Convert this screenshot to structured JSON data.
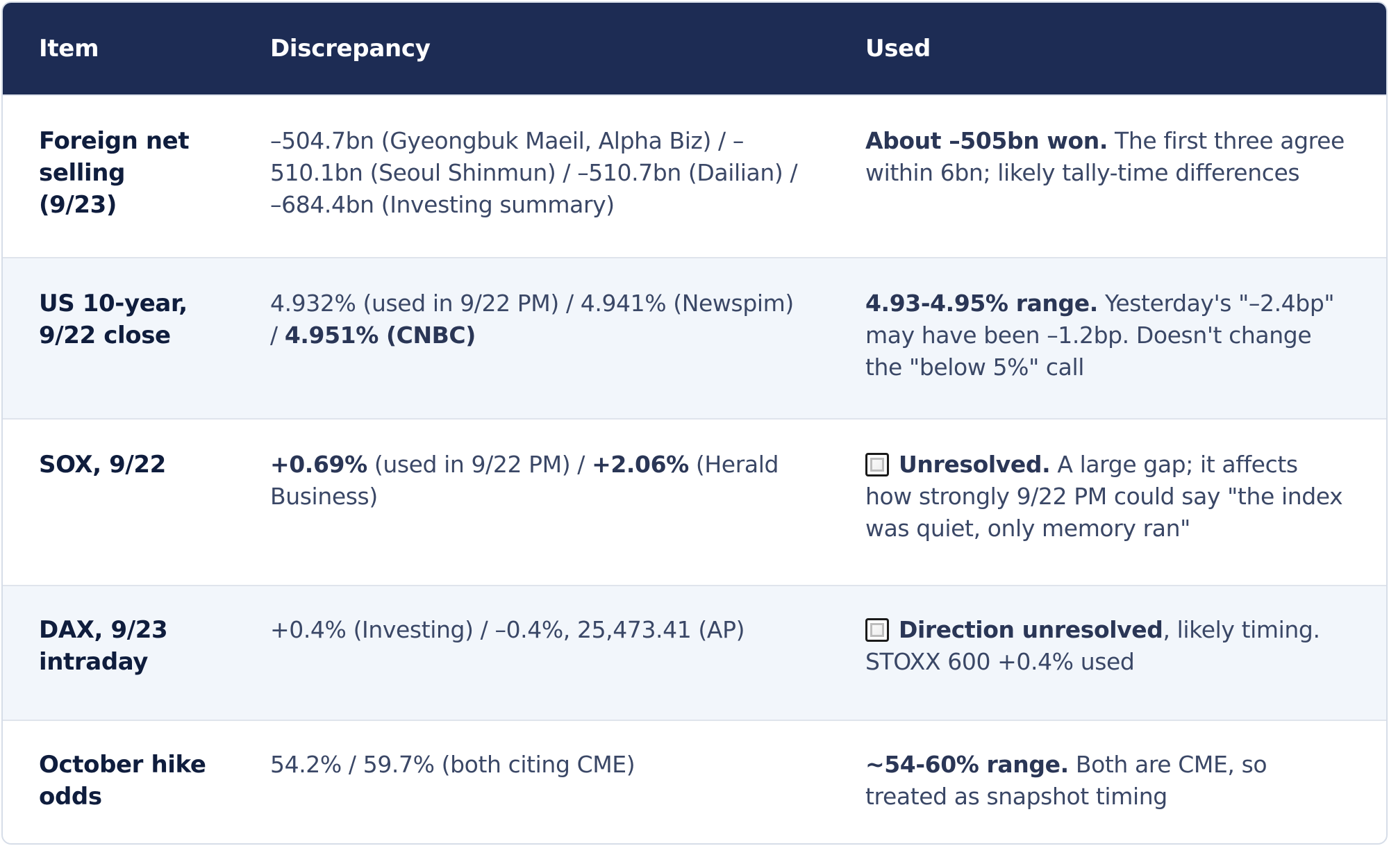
{
  "headers": {
    "item": "Item",
    "discrepancy": "Discrepancy",
    "used": "Used"
  },
  "rows": [
    {
      "item": "Foreign net selling (9/23)",
      "discrepancy": "–504.7bn (Gyeongbuk Maeil, Alpha Biz) / –510.1bn (Seoul Shinmun) / –510.7bn (Dailian) / –684.4bn (Investing summary)",
      "used_bold": "About –505bn won.",
      "used_rest": " The first three agree within 6bn; likely tally-time differences"
    },
    {
      "item": "US 10-year, 9/22 close",
      "disc_plain": "4.932% (used in 9/22 PM) / 4.941% (Newspim) / ",
      "disc_bold": "4.951% (CNBC)",
      "used_bold": "4.93-4.95% range.",
      "used_rest": " Yesterday's \"–2.4bp\" may have been –1.2bp. Doesn't change the \"below 5%\" call"
    },
    {
      "item": "SOX, 9/22",
      "disc_bold_1": "+0.69%",
      "disc_plain_1": " (used in 9/22 PM) / ",
      "disc_bold_2": "+2.06%",
      "disc_plain_2": " (Herald Business)",
      "used_icon": "white-square-button-icon",
      "used_bold": "Unresolved.",
      "used_rest": " A large gap; it affects how strongly 9/22 PM could say \"the index was quiet, only memory ran\""
    },
    {
      "item": "DAX, 9/23 intraday",
      "discrepancy": "+0.4% (Investing) / –0.4%, 25,473.41 (AP)",
      "used_icon": "white-square-button-icon",
      "used_bold": "Direction unresolved",
      "used_rest": ", likely timing. STOXX 600 +0.4% used"
    },
    {
      "item": "October hike odds",
      "discrepancy": "54.2% / 59.7% (both citing CME)",
      "used_bold": "~54-60% range.",
      "used_rest": " Both are CME, so treated as snapshot timing"
    }
  ]
}
